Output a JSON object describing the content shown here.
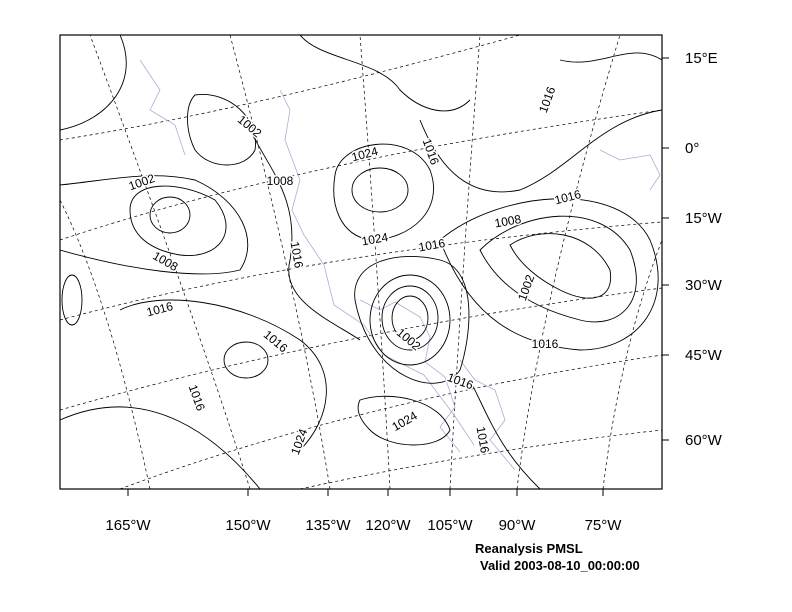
{
  "map": {
    "title": "Reanalysis PMSL",
    "subtitle": "Valid 2003-08-10_00:00:00",
    "lon_labels": [
      "165°W",
      "150°W",
      "135°W",
      "120°W",
      "105°W",
      "90°W",
      "75°W"
    ],
    "lat_labels": [
      "15°E",
      "0°",
      "15°W",
      "30°W",
      "45°W",
      "60°W"
    ],
    "contour_labels": [
      "1002",
      "1002",
      "1008",
      "1008",
      "1016",
      "1016",
      "1024",
      "1024",
      "1016",
      "1016",
      "1008",
      "1016",
      "1016",
      "1002",
      "1016",
      "1002",
      "1016",
      "1016",
      "1016",
      "1024",
      "1024",
      "1016"
    ]
  }
}
